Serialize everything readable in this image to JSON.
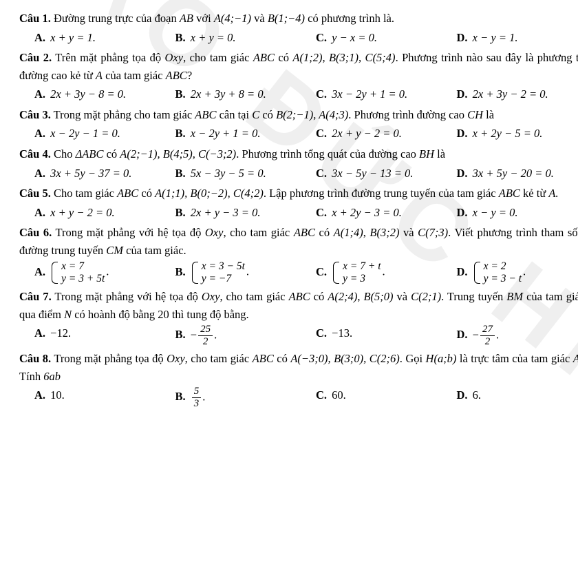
{
  "watermark_text": "ĐÀO ĐỨC HIẾ",
  "colors": {
    "text": "#000000",
    "background": "#ffffff",
    "watermark": "rgba(120,120,120,0.12)"
  },
  "typography": {
    "body_family": "Times New Roman",
    "body_size_pt": 12.5,
    "bold_labels": true
  },
  "q1": {
    "label": "Câu 1.",
    "stem_pre": " Đường trung trực của đoạn ",
    "seg": "AB",
    "stem_mid1": " với ",
    "ptA": "A(4;−1)",
    "stem_mid2": " và ",
    "ptB": "B(1;−4)",
    "stem_post": " có phương trình là.",
    "A": "x + y = 1.",
    "B": "x + y = 0.",
    "C": "y − x = 0.",
    "D": "x − y = 1."
  },
  "q2": {
    "label": "Câu 2.",
    "line1a": " Trên mặt phẳng tọa độ ",
    "oxy": "Oxy",
    "line1b": ", cho tam giác ",
    "abc": "ABC",
    "line1c": " có ",
    "pts": "A(1;2), B(3;1), C(5;4)",
    "line1d": ". Phương trình nào",
    "line2a": "sau đây là phương trình đường cao kẻ từ ",
    "fromA": "A",
    "line2b": " của tam giác ",
    "abc2": "ABC",
    "qmark": "?",
    "A": "2x + 3y − 8 = 0.",
    "B": "2x + 3y + 8 = 0.",
    "C": "3x − 2y + 1 = 0.",
    "D": "2x + 3y − 2 = 0."
  },
  "q3": {
    "label": "Câu 3.",
    "line1a": " Trong mặt phẳng cho tam giác ",
    "abc": "ABC",
    "line1b": " cân tại ",
    "Cc": "C",
    "line1c": " có ",
    "pts": "B(2;−1), A(4;3)",
    "line1d": ". Phương trình đường cao",
    "line2": "CH",
    "line2b": " là",
    "A": "x − 2y − 1 = 0.",
    "B": "x − 2y + 1 = 0.",
    "C": "2x + y − 2 = 0.",
    "D": "x + 2y − 5 = 0."
  },
  "q4": {
    "label": "Câu 4.",
    "stem_a": " Cho ",
    "tri": "ΔABC",
    "stem_b": " có ",
    "pts": "A(2;−1), B(4;5), C(−3;2)",
    "stem_c": ". Phương trình tổng quát của đường cao ",
    "bh": "BH",
    "stem_d": " là",
    "A": "3x + 5y − 37 = 0.",
    "B": "5x − 3y − 5 = 0.",
    "C": "3x − 5y − 13 = 0.",
    "D": "3x + 5y − 20 = 0."
  },
  "q5": {
    "label": "Câu 5.",
    "line1a": " Cho tam giác ",
    "abc": "ABC",
    "line1b": " có ",
    "pts": "A(1;1), B(0;−2), C(4;2)",
    "line1c": ". Lập phương trình đường trung tuyến của",
    "line2a": "tam giác ",
    "abc2": "ABC",
    "line2b": " kẻ từ ",
    "fromA": "A.",
    "A": "x + y − 2 = 0.",
    "B": "2x + y − 3 = 0.",
    "C": "x + 2y − 3 = 0.",
    "D": "x − y = 0."
  },
  "q6": {
    "label": "Câu 6.",
    "line1a": " Trong mặt phẳng với hệ tọa độ ",
    "oxy": "Oxy",
    "line1b": ", cho tam giác ",
    "abc": "ABC",
    "line1c": " có ",
    "ptA": "A(1;4)",
    "comma1": ", ",
    "ptB": "B(3;2)",
    "and": " và ",
    "ptC": "C(7;3)",
    "dot": ". Viết",
    "line2a": "phương trình tham số của đường trung tuyến ",
    "cm": "CM",
    "line2b": " của tam giác.",
    "A": {
      "r1": "x = 7",
      "r2": "y = 3 + 5t",
      "tail": "."
    },
    "B": {
      "r1": "x = 3 − 5t",
      "r2": "y = −7",
      "tail": "."
    },
    "C": {
      "r1": "x = 7 + t",
      "r2": "y = 3",
      "tail": "."
    },
    "D": {
      "r1": "x = 2",
      "r2": "y = 3 − t",
      "tail": "."
    }
  },
  "q7": {
    "label": "Câu 7.",
    "line1a": " Trong mặt phẳng với hệ tọa độ ",
    "oxy": "Oxy",
    "line1b": ", cho tam giác ",
    "abc": "ABC",
    "line1c": " có ",
    "ptA": "A(2;4)",
    "comma1": ", ",
    "ptB": "B(5;0)",
    "and": " và ",
    "ptC": "C(2;1)",
    "dot": ". Trung",
    "line2a": "tuyến ",
    "bm": "BM",
    "line2b": " của tam giác đi qua điểm ",
    "N": "N",
    "line2c": " có hoành độ bằng ",
    "h20": "20",
    "line2d": " thì tung độ bằng.",
    "A": "−12.",
    "B": {
      "neg": "−",
      "num": "25",
      "den": "2",
      "tail": "."
    },
    "C": "−13.",
    "D": {
      "neg": "−",
      "num": "27",
      "den": "2",
      "tail": "."
    }
  },
  "q8": {
    "label": "Câu 8.",
    "line1a": " Trong mặt phẳng tọa độ ",
    "oxy": "Oxy",
    "line1b": ", cho tam giác ",
    "abc": "ABC",
    "line1c": " có ",
    "pts": "A(−3;0), B(3;0), C(2;6)",
    "line1d": ". Gọi ",
    "hab": "H(a;b)",
    "line1e": " là",
    "line2a": "trực tâm của tam giác ",
    "abc2": "ABC",
    "line2b": ". Tính ",
    "sixab": "6ab",
    "A": "10.",
    "B": {
      "num": "5",
      "den": "3",
      "tail": "."
    },
    "C": "60.",
    "D": "6."
  }
}
